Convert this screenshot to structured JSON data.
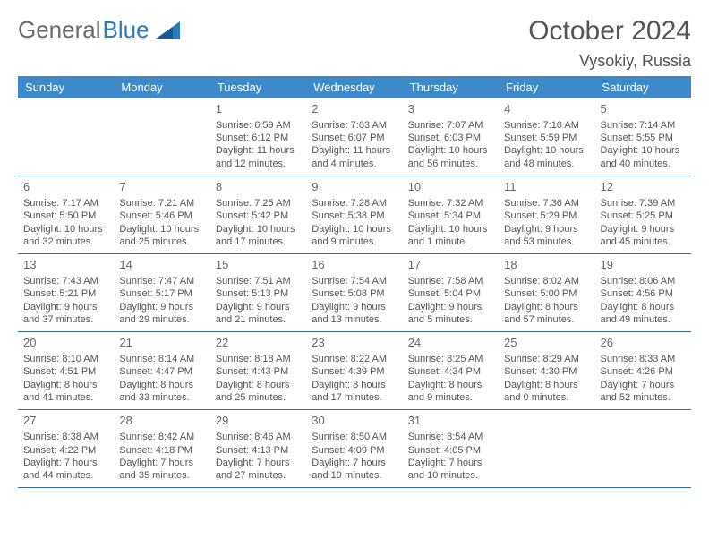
{
  "header": {
    "logo_text_1": "General",
    "logo_text_2": "Blue",
    "month_title": "October 2024",
    "location": "Vysokiy, Russia"
  },
  "style": {
    "header_bg": "#3e8ac9",
    "header_fg": "#ffffff",
    "row_border": "#2e6fa3",
    "text_color": "#555555",
    "logo_gray": "#6a6a6a",
    "logo_blue": "#2b7bbf",
    "cell_font_size": 11,
    "header_font_size": 13,
    "title_font_size": 30,
    "location_font_size": 18
  },
  "days_of_week": [
    "Sunday",
    "Monday",
    "Tuesday",
    "Wednesday",
    "Thursday",
    "Friday",
    "Saturday"
  ],
  "weeks": [
    [
      {
        "n": "",
        "lines": [
          "",
          "",
          ""
        ]
      },
      {
        "n": "",
        "lines": [
          "",
          "",
          ""
        ]
      },
      {
        "n": "1",
        "lines": [
          "Sunrise: 6:59 AM",
          "Sunset: 6:12 PM",
          "Daylight: 11 hours and 12 minutes."
        ]
      },
      {
        "n": "2",
        "lines": [
          "Sunrise: 7:03 AM",
          "Sunset: 6:07 PM",
          "Daylight: 11 hours and 4 minutes."
        ]
      },
      {
        "n": "3",
        "lines": [
          "Sunrise: 7:07 AM",
          "Sunset: 6:03 PM",
          "Daylight: 10 hours and 56 minutes."
        ]
      },
      {
        "n": "4",
        "lines": [
          "Sunrise: 7:10 AM",
          "Sunset: 5:59 PM",
          "Daylight: 10 hours and 48 minutes."
        ]
      },
      {
        "n": "5",
        "lines": [
          "Sunrise: 7:14 AM",
          "Sunset: 5:55 PM",
          "Daylight: 10 hours and 40 minutes."
        ]
      }
    ],
    [
      {
        "n": "6",
        "lines": [
          "Sunrise: 7:17 AM",
          "Sunset: 5:50 PM",
          "Daylight: 10 hours and 32 minutes."
        ]
      },
      {
        "n": "7",
        "lines": [
          "Sunrise: 7:21 AM",
          "Sunset: 5:46 PM",
          "Daylight: 10 hours and 25 minutes."
        ]
      },
      {
        "n": "8",
        "lines": [
          "Sunrise: 7:25 AM",
          "Sunset: 5:42 PM",
          "Daylight: 10 hours and 17 minutes."
        ]
      },
      {
        "n": "9",
        "lines": [
          "Sunrise: 7:28 AM",
          "Sunset: 5:38 PM",
          "Daylight: 10 hours and 9 minutes."
        ]
      },
      {
        "n": "10",
        "lines": [
          "Sunrise: 7:32 AM",
          "Sunset: 5:34 PM",
          "Daylight: 10 hours and 1 minute."
        ]
      },
      {
        "n": "11",
        "lines": [
          "Sunrise: 7:36 AM",
          "Sunset: 5:29 PM",
          "Daylight: 9 hours and 53 minutes."
        ]
      },
      {
        "n": "12",
        "lines": [
          "Sunrise: 7:39 AM",
          "Sunset: 5:25 PM",
          "Daylight: 9 hours and 45 minutes."
        ]
      }
    ],
    [
      {
        "n": "13",
        "lines": [
          "Sunrise: 7:43 AM",
          "Sunset: 5:21 PM",
          "Daylight: 9 hours and 37 minutes."
        ]
      },
      {
        "n": "14",
        "lines": [
          "Sunrise: 7:47 AM",
          "Sunset: 5:17 PM",
          "Daylight: 9 hours and 29 minutes."
        ]
      },
      {
        "n": "15",
        "lines": [
          "Sunrise: 7:51 AM",
          "Sunset: 5:13 PM",
          "Daylight: 9 hours and 21 minutes."
        ]
      },
      {
        "n": "16",
        "lines": [
          "Sunrise: 7:54 AM",
          "Sunset: 5:08 PM",
          "Daylight: 9 hours and 13 minutes."
        ]
      },
      {
        "n": "17",
        "lines": [
          "Sunrise: 7:58 AM",
          "Sunset: 5:04 PM",
          "Daylight: 9 hours and 5 minutes."
        ]
      },
      {
        "n": "18",
        "lines": [
          "Sunrise: 8:02 AM",
          "Sunset: 5:00 PM",
          "Daylight: 8 hours and 57 minutes."
        ]
      },
      {
        "n": "19",
        "lines": [
          "Sunrise: 8:06 AM",
          "Sunset: 4:56 PM",
          "Daylight: 8 hours and 49 minutes."
        ]
      }
    ],
    [
      {
        "n": "20",
        "lines": [
          "Sunrise: 8:10 AM",
          "Sunset: 4:51 PM",
          "Daylight: 8 hours and 41 minutes."
        ]
      },
      {
        "n": "21",
        "lines": [
          "Sunrise: 8:14 AM",
          "Sunset: 4:47 PM",
          "Daylight: 8 hours and 33 minutes."
        ]
      },
      {
        "n": "22",
        "lines": [
          "Sunrise: 8:18 AM",
          "Sunset: 4:43 PM",
          "Daylight: 8 hours and 25 minutes."
        ]
      },
      {
        "n": "23",
        "lines": [
          "Sunrise: 8:22 AM",
          "Sunset: 4:39 PM",
          "Daylight: 8 hours and 17 minutes."
        ]
      },
      {
        "n": "24",
        "lines": [
          "Sunrise: 8:25 AM",
          "Sunset: 4:34 PM",
          "Daylight: 8 hours and 9 minutes."
        ]
      },
      {
        "n": "25",
        "lines": [
          "Sunrise: 8:29 AM",
          "Sunset: 4:30 PM",
          "Daylight: 8 hours and 0 minutes."
        ]
      },
      {
        "n": "26",
        "lines": [
          "Sunrise: 8:33 AM",
          "Sunset: 4:26 PM",
          "Daylight: 7 hours and 52 minutes."
        ]
      }
    ],
    [
      {
        "n": "27",
        "lines": [
          "Sunrise: 8:38 AM",
          "Sunset: 4:22 PM",
          "Daylight: 7 hours and 44 minutes."
        ]
      },
      {
        "n": "28",
        "lines": [
          "Sunrise: 8:42 AM",
          "Sunset: 4:18 PM",
          "Daylight: 7 hours and 35 minutes."
        ]
      },
      {
        "n": "29",
        "lines": [
          "Sunrise: 8:46 AM",
          "Sunset: 4:13 PM",
          "Daylight: 7 hours and 27 minutes."
        ]
      },
      {
        "n": "30",
        "lines": [
          "Sunrise: 8:50 AM",
          "Sunset: 4:09 PM",
          "Daylight: 7 hours and 19 minutes."
        ]
      },
      {
        "n": "31",
        "lines": [
          "Sunrise: 8:54 AM",
          "Sunset: 4:05 PM",
          "Daylight: 7 hours and 10 minutes."
        ]
      },
      {
        "n": "",
        "lines": [
          "",
          "",
          ""
        ]
      },
      {
        "n": "",
        "lines": [
          "",
          "",
          ""
        ]
      }
    ]
  ]
}
